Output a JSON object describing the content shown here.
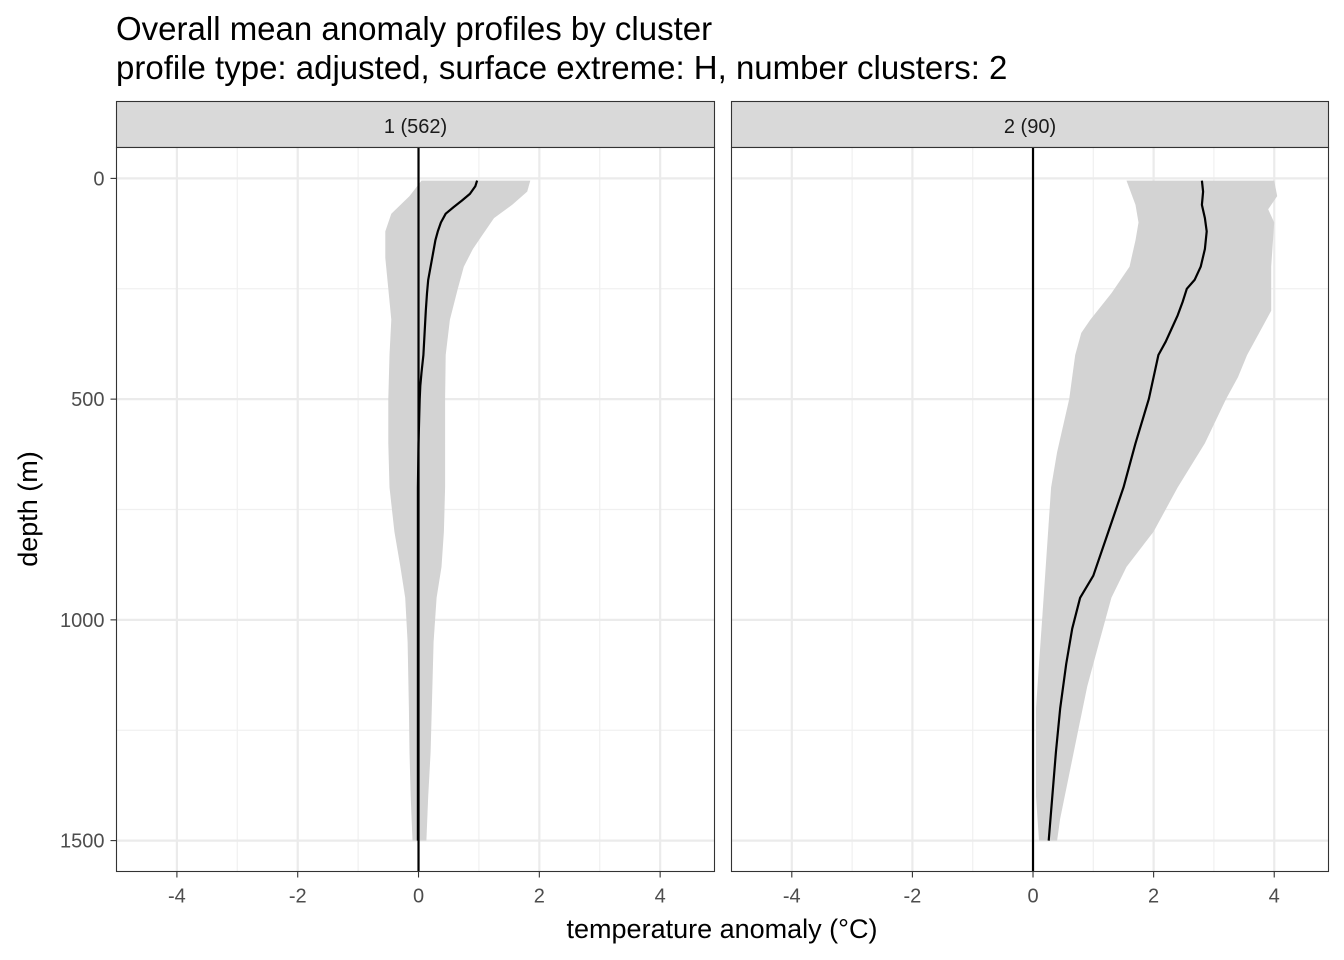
{
  "chart_data": {
    "type": "line",
    "title": "Overall mean anomaly profiles by cluster",
    "subtitle": "profile type: adjusted, surface extreme: H, number clusters: 2",
    "xlabel": "temperature anomaly (°C)",
    "ylabel": "depth (m)",
    "xlim": [
      -5,
      4.9
    ],
    "ylim": [
      1570,
      -70
    ],
    "y_reversed": true,
    "x_ticks": [
      -4,
      -2,
      0,
      2,
      4
    ],
    "x_tick_labels": [
      "-4",
      "-2",
      "0",
      "2",
      "4"
    ],
    "y_ticks": [
      0,
      500,
      1000,
      1500
    ],
    "y_tick_labels": [
      "0",
      "500",
      "1000",
      "1500"
    ],
    "grid": true,
    "reference_line_x": 0,
    "panels": [
      {
        "label": "1 (562)",
        "mean": [
          [
            0.97,
            5
          ],
          [
            0.94,
            18
          ],
          [
            0.85,
            35
          ],
          [
            0.72,
            50
          ],
          [
            0.58,
            65
          ],
          [
            0.45,
            80
          ],
          [
            0.37,
            100
          ],
          [
            0.32,
            120
          ],
          [
            0.28,
            140
          ],
          [
            0.24,
            170
          ],
          [
            0.2,
            200
          ],
          [
            0.16,
            230
          ],
          [
            0.14,
            260
          ],
          [
            0.12,
            300
          ],
          [
            0.1,
            350
          ],
          [
            0.08,
            400
          ],
          [
            0.05,
            440
          ],
          [
            0.03,
            470
          ],
          [
            0.02,
            500
          ],
          [
            0.01,
            550
          ],
          [
            0.0,
            600
          ],
          [
            -0.01,
            700
          ],
          [
            -0.01,
            800
          ],
          [
            -0.01,
            900
          ],
          [
            -0.01,
            1000
          ],
          [
            -0.01,
            1100
          ],
          [
            -0.01,
            1200
          ],
          [
            -0.01,
            1300
          ],
          [
            -0.01,
            1400
          ],
          [
            -0.01,
            1500
          ]
        ],
        "band_upper": [
          [
            1.85,
            5
          ],
          [
            1.8,
            30
          ],
          [
            1.55,
            60
          ],
          [
            1.25,
            90
          ],
          [
            1.05,
            130
          ],
          [
            0.9,
            160
          ],
          [
            0.75,
            200
          ],
          [
            0.65,
            250
          ],
          [
            0.52,
            320
          ],
          [
            0.45,
            400
          ],
          [
            0.44,
            500
          ],
          [
            0.44,
            600
          ],
          [
            0.44,
            700
          ],
          [
            0.42,
            800
          ],
          [
            0.38,
            880
          ],
          [
            0.3,
            950
          ],
          [
            0.25,
            1050
          ],
          [
            0.22,
            1200
          ],
          [
            0.2,
            1300
          ],
          [
            0.16,
            1400
          ],
          [
            0.13,
            1500
          ]
        ],
        "band_lower": [
          [
            0.05,
            5
          ],
          [
            -0.15,
            40
          ],
          [
            -0.45,
            80
          ],
          [
            -0.55,
            120
          ],
          [
            -0.55,
            180
          ],
          [
            -0.5,
            250
          ],
          [
            -0.45,
            320
          ],
          [
            -0.48,
            400
          ],
          [
            -0.5,
            500
          ],
          [
            -0.5,
            600
          ],
          [
            -0.48,
            700
          ],
          [
            -0.4,
            800
          ],
          [
            -0.3,
            880
          ],
          [
            -0.22,
            950
          ],
          [
            -0.18,
            1050
          ],
          [
            -0.16,
            1200
          ],
          [
            -0.15,
            1300
          ],
          [
            -0.13,
            1400
          ],
          [
            -0.1,
            1500
          ]
        ]
      },
      {
        "label": "2 (90)",
        "mean": [
          [
            2.8,
            5
          ],
          [
            2.82,
            30
          ],
          [
            2.8,
            60
          ],
          [
            2.85,
            90
          ],
          [
            2.88,
            120
          ],
          [
            2.85,
            160
          ],
          [
            2.78,
            200
          ],
          [
            2.68,
            230
          ],
          [
            2.55,
            250
          ],
          [
            2.48,
            280
          ],
          [
            2.4,
            310
          ],
          [
            2.3,
            340
          ],
          [
            2.2,
            370
          ],
          [
            2.08,
            400
          ],
          [
            2.0,
            450
          ],
          [
            1.92,
            500
          ],
          [
            1.7,
            600
          ],
          [
            1.5,
            700
          ],
          [
            1.25,
            800
          ],
          [
            1.0,
            900
          ],
          [
            0.78,
            950
          ],
          [
            0.65,
            1020
          ],
          [
            0.55,
            1100
          ],
          [
            0.45,
            1200
          ],
          [
            0.38,
            1300
          ],
          [
            0.32,
            1400
          ],
          [
            0.26,
            1500
          ]
        ],
        "band_upper": [
          [
            4.0,
            5
          ],
          [
            4.05,
            40
          ],
          [
            3.9,
            70
          ],
          [
            4.0,
            100
          ],
          [
            3.95,
            200
          ],
          [
            3.95,
            300
          ],
          [
            3.75,
            350
          ],
          [
            3.55,
            400
          ],
          [
            3.4,
            450
          ],
          [
            3.2,
            500
          ],
          [
            2.85,
            600
          ],
          [
            2.4,
            700
          ],
          [
            2.0,
            800
          ],
          [
            1.55,
            880
          ],
          [
            1.3,
            950
          ],
          [
            1.1,
            1050
          ],
          [
            0.9,
            1150
          ],
          [
            0.75,
            1250
          ],
          [
            0.6,
            1350
          ],
          [
            0.45,
            1450
          ],
          [
            0.4,
            1500
          ]
        ],
        "band_lower": [
          [
            1.55,
            5
          ],
          [
            1.7,
            60
          ],
          [
            1.75,
            100
          ],
          [
            1.7,
            140
          ],
          [
            1.6,
            200
          ],
          [
            1.3,
            260
          ],
          [
            0.95,
            320
          ],
          [
            0.8,
            350
          ],
          [
            0.7,
            400
          ],
          [
            0.6,
            500
          ],
          [
            0.4,
            620
          ],
          [
            0.3,
            700
          ],
          [
            0.25,
            800
          ],
          [
            0.2,
            900
          ],
          [
            0.15,
            1000
          ],
          [
            0.1,
            1100
          ],
          [
            0.05,
            1200
          ],
          [
            0.05,
            1300
          ],
          [
            0.05,
            1400
          ],
          [
            0.1,
            1500
          ]
        ]
      }
    ]
  }
}
